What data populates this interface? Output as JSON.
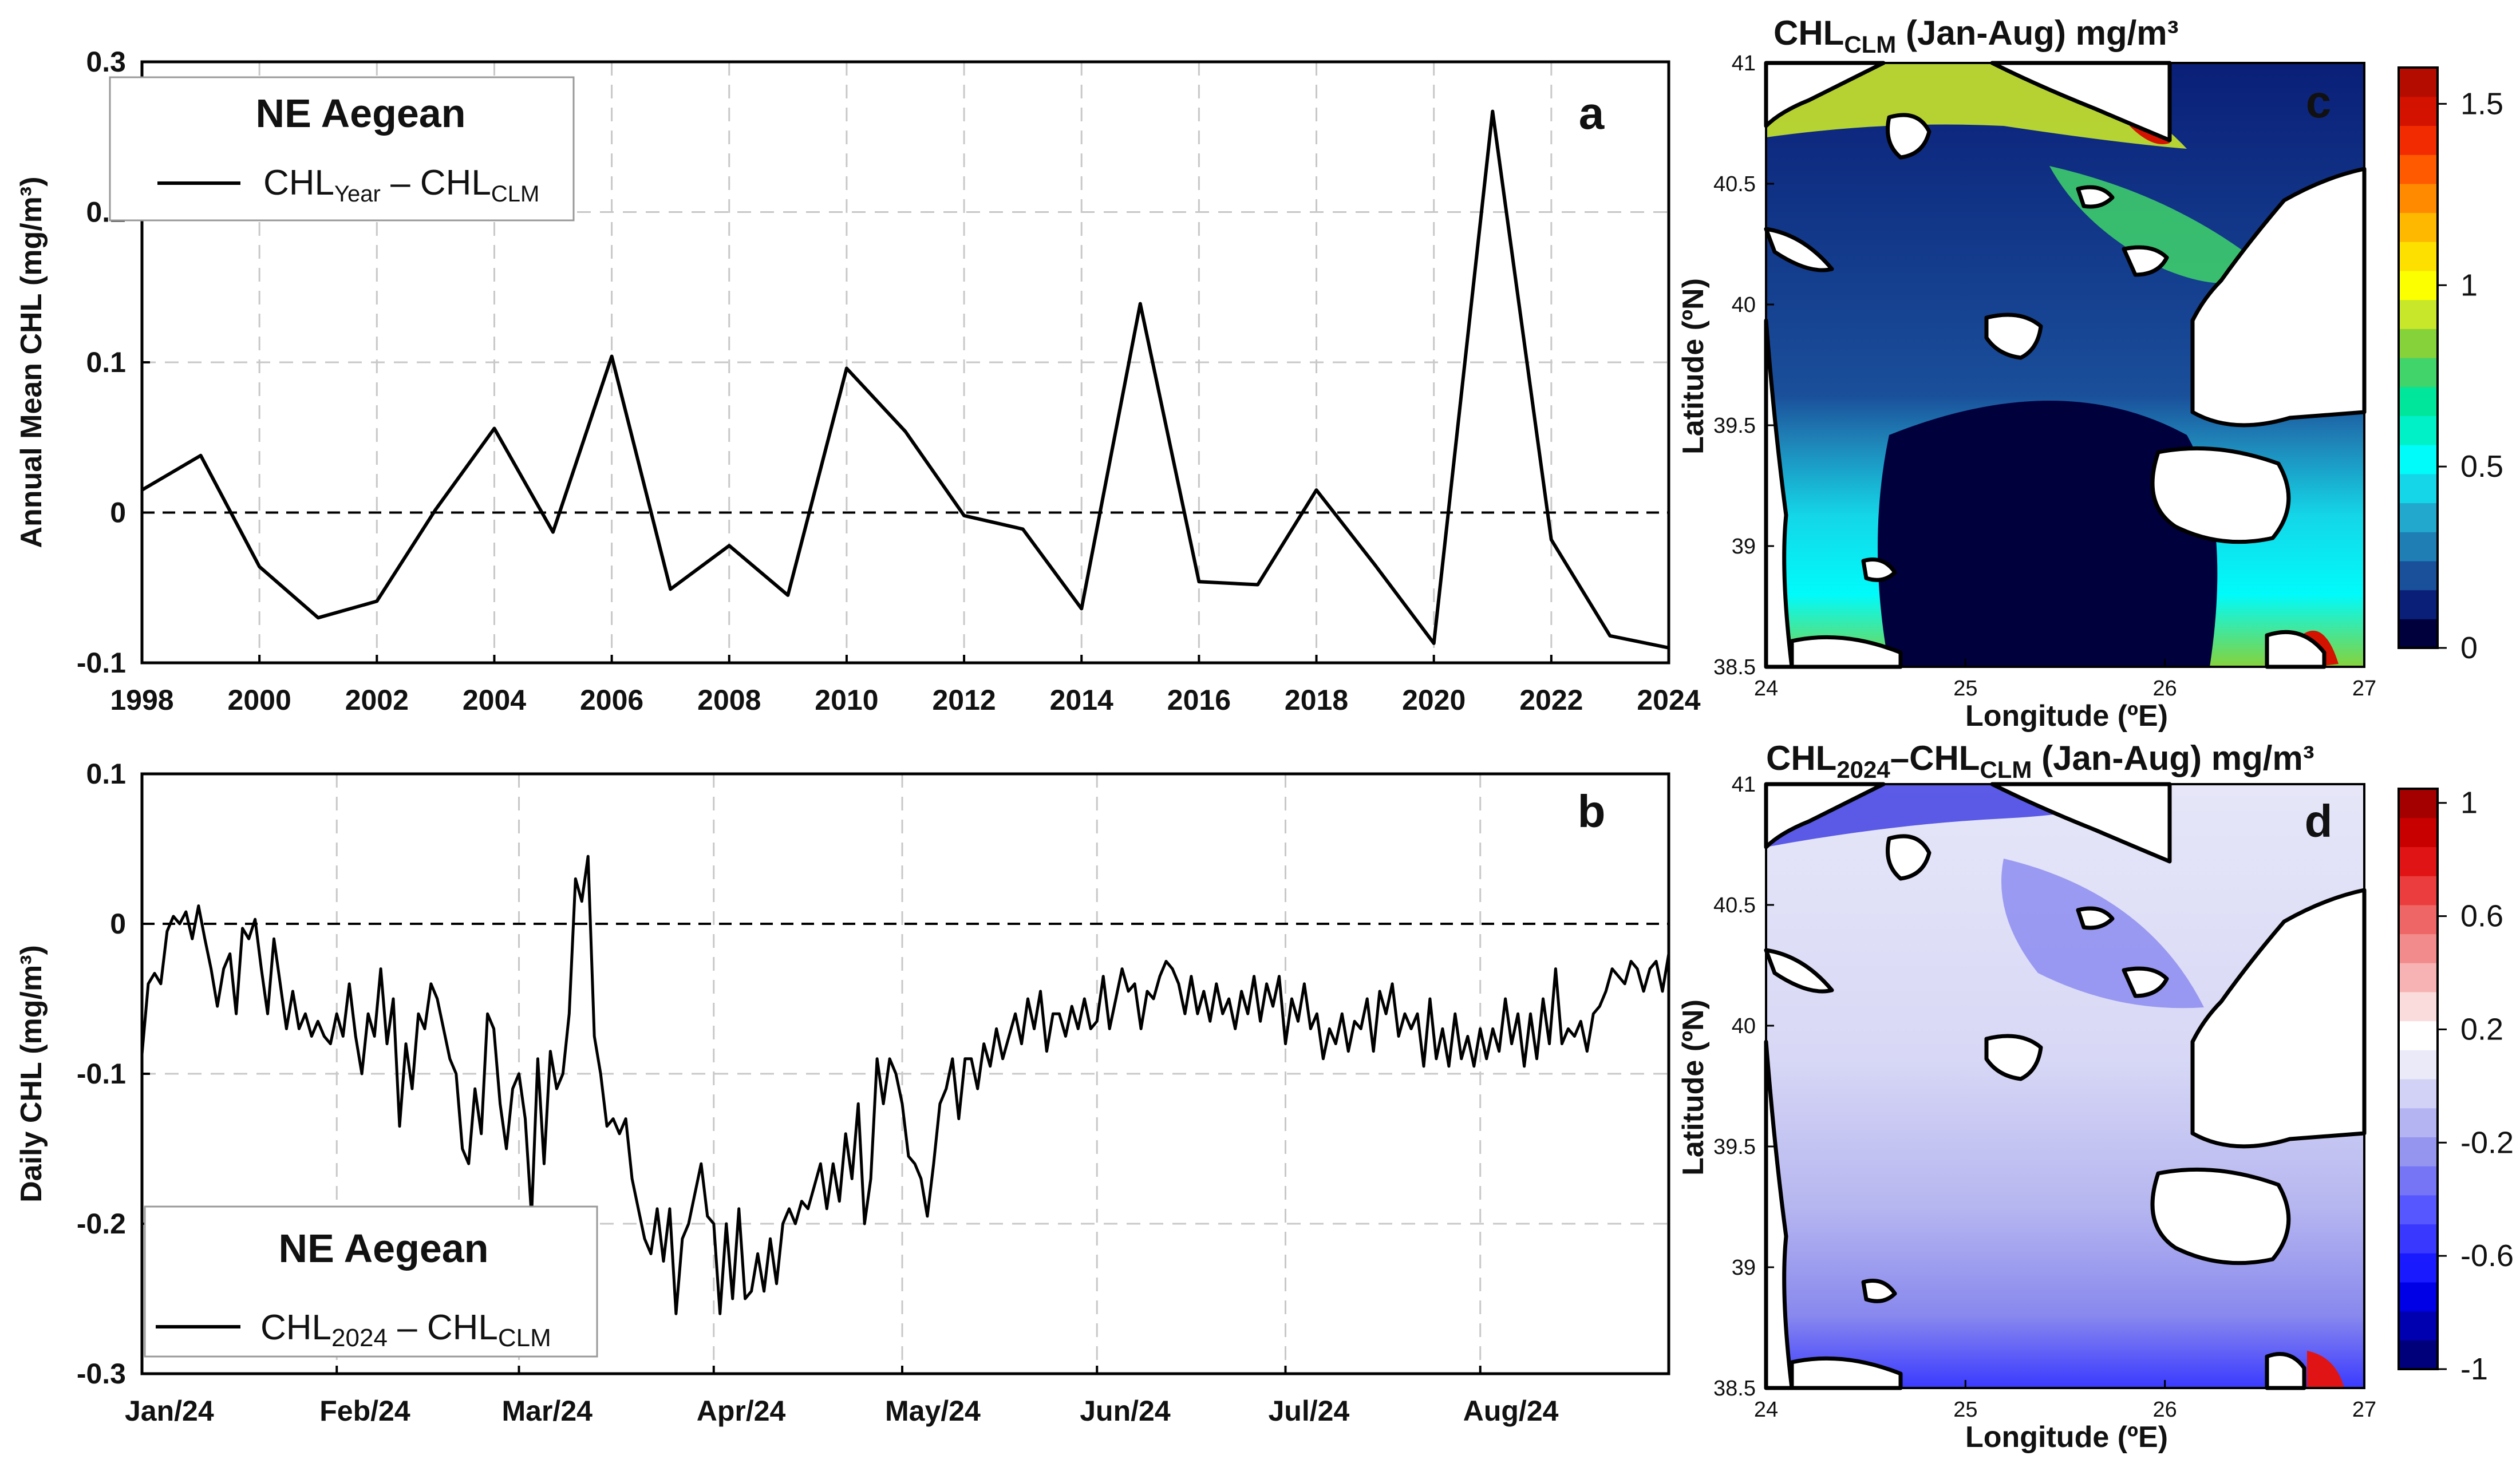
{
  "chart_data": [
    {
      "panel": "a",
      "type": "line",
      "ylabel": "Annual Mean CHL (mg/m³)",
      "legend": {
        "title": "NE Aegean",
        "entry": {
          "base": "CHL",
          "sub1": "Year",
          "mid": " – CHL",
          "sub2": "CLM"
        },
        "position": "top-left"
      },
      "xlim": [
        1998,
        2024
      ],
      "ylim": [
        -0.1,
        0.3
      ],
      "xticks": [
        1998,
        2000,
        2002,
        2004,
        2006,
        2008,
        2010,
        2012,
        2014,
        2016,
        2018,
        2020,
        2022,
        2024
      ],
      "yticks": [
        -0.1,
        0,
        0.1,
        0.2,
        0.3
      ],
      "ytick_labels": [
        "-0.1",
        "0",
        "0.1",
        "0.2",
        "0.3"
      ],
      "grid": true,
      "zero_line": "dashed",
      "x": [
        1998,
        1999,
        2000,
        2001,
        2002,
        2003,
        2004,
        2005,
        2006,
        2007,
        2008,
        2009,
        2010,
        2011,
        2012,
        2013,
        2014,
        2015,
        2016,
        2017,
        2018,
        2019,
        2020,
        2021,
        2022,
        2023,
        2024
      ],
      "y": [
        0.015,
        0.038,
        -0.036,
        -0.07,
        -0.059,
        0.002,
        0.056,
        -0.013,
        0.104,
        -0.051,
        -0.022,
        -0.055,
        0.096,
        0.054,
        -0.002,
        -0.011,
        -0.064,
        0.139,
        -0.046,
        -0.048,
        0.015,
        -0.035,
        -0.087,
        0.267,
        -0.018,
        -0.082,
        -0.09
      ]
    },
    {
      "panel": "b",
      "type": "line",
      "ylabel": "Daily CHL (mg/m³)",
      "legend": {
        "title": "NE Aegean",
        "entry": {
          "base": "CHL",
          "sub1": "2024",
          "mid": " – CHL",
          "sub2": "CLM"
        },
        "position": "bottom-left"
      },
      "xlim": [
        1,
        244
      ],
      "ylim": [
        -0.3,
        0.1
      ],
      "xticks": [
        1,
        32,
        61,
        92,
        122,
        153,
        183,
        214
      ],
      "xtick_labels": [
        "Jan/24",
        "Feb/24",
        "Mar/24",
        "Apr/24",
        "May/24",
        "Jun/24",
        "Jul/24",
        "Aug/24"
      ],
      "yticks": [
        -0.3,
        -0.2,
        -0.1,
        0,
        0.1
      ],
      "ytick_labels": [
        "-0.3",
        "-0.2",
        "-0.1",
        "0",
        "0.1"
      ],
      "grid": true,
      "zero_line": "dashed",
      "anchors": [
        [
          1,
          -0.087
        ],
        [
          2,
          -0.04
        ],
        [
          3,
          -0.033
        ],
        [
          4,
          -0.04
        ],
        [
          5,
          -0.005
        ],
        [
          6,
          0.005
        ],
        [
          7,
          0.0
        ],
        [
          8,
          0.008
        ],
        [
          9,
          -0.01
        ],
        [
          10,
          0.012
        ],
        [
          11,
          -0.01
        ],
        [
          12,
          -0.03
        ],
        [
          13,
          -0.055
        ],
        [
          14,
          -0.03
        ],
        [
          15,
          -0.02
        ],
        [
          16,
          -0.06
        ],
        [
          17,
          -0.003
        ],
        [
          18,
          -0.01
        ],
        [
          19,
          0.003
        ],
        [
          20,
          -0.03
        ],
        [
          21,
          -0.06
        ],
        [
          22,
          -0.01
        ],
        [
          23,
          -0.04
        ],
        [
          24,
          -0.07
        ],
        [
          25,
          -0.045
        ],
        [
          26,
          -0.07
        ],
        [
          27,
          -0.06
        ],
        [
          28,
          -0.075
        ],
        [
          29,
          -0.065
        ],
        [
          30,
          -0.075
        ],
        [
          31,
          -0.08
        ],
        [
          32,
          -0.06
        ],
        [
          33,
          -0.075
        ],
        [
          34,
          -0.04
        ],
        [
          35,
          -0.075
        ],
        [
          36,
          -0.1
        ],
        [
          37,
          -0.06
        ],
        [
          38,
          -0.075
        ],
        [
          39,
          -0.03
        ],
        [
          40,
          -0.08
        ],
        [
          41,
          -0.05
        ],
        [
          42,
          -0.135
        ],
        [
          43,
          -0.08
        ],
        [
          44,
          -0.11
        ],
        [
          45,
          -0.06
        ],
        [
          46,
          -0.07
        ],
        [
          47,
          -0.04
        ],
        [
          48,
          -0.05
        ],
        [
          49,
          -0.07
        ],
        [
          50,
          -0.09
        ],
        [
          51,
          -0.1
        ],
        [
          52,
          -0.15
        ],
        [
          53,
          -0.16
        ],
        [
          54,
          -0.11
        ],
        [
          55,
          -0.14
        ],
        [
          56,
          -0.06
        ],
        [
          57,
          -0.07
        ],
        [
          58,
          -0.12
        ],
        [
          59,
          -0.15
        ],
        [
          60,
          -0.11
        ],
        [
          61,
          -0.1
        ],
        [
          62,
          -0.13
        ],
        [
          63,
          -0.195
        ],
        [
          64,
          -0.09
        ],
        [
          65,
          -0.16
        ],
        [
          66,
          -0.085
        ],
        [
          67,
          -0.11
        ],
        [
          68,
          -0.1
        ],
        [
          69,
          -0.06
        ],
        [
          70,
          0.03
        ],
        [
          71,
          0.015
        ],
        [
          72,
          0.045
        ],
        [
          73,
          -0.075
        ],
        [
          74,
          -0.1
        ],
        [
          75,
          -0.135
        ],
        [
          76,
          -0.13
        ],
        [
          77,
          -0.14
        ],
        [
          78,
          -0.13
        ],
        [
          79,
          -0.17
        ],
        [
          80,
          -0.19
        ],
        [
          81,
          -0.21
        ],
        [
          82,
          -0.22
        ],
        [
          83,
          -0.19
        ],
        [
          84,
          -0.225
        ],
        [
          85,
          -0.19
        ],
        [
          86,
          -0.26
        ],
        [
          87,
          -0.21
        ],
        [
          88,
          -0.2
        ],
        [
          89,
          -0.18
        ],
        [
          90,
          -0.16
        ],
        [
          91,
          -0.195
        ],
        [
          92,
          -0.2
        ],
        [
          93,
          -0.26
        ],
        [
          94,
          -0.2
        ],
        [
          95,
          -0.25
        ],
        [
          96,
          -0.19
        ],
        [
          97,
          -0.25
        ],
        [
          98,
          -0.245
        ],
        [
          99,
          -0.22
        ],
        [
          100,
          -0.245
        ],
        [
          101,
          -0.21
        ],
        [
          102,
          -0.24
        ],
        [
          103,
          -0.2
        ],
        [
          104,
          -0.19
        ],
        [
          105,
          -0.2
        ],
        [
          106,
          -0.185
        ],
        [
          107,
          -0.19
        ],
        [
          108,
          -0.175
        ],
        [
          109,
          -0.16
        ],
        [
          110,
          -0.19
        ],
        [
          111,
          -0.16
        ],
        [
          112,
          -0.185
        ],
        [
          113,
          -0.14
        ],
        [
          114,
          -0.17
        ],
        [
          115,
          -0.12
        ],
        [
          116,
          -0.2
        ],
        [
          117,
          -0.17
        ],
        [
          118,
          -0.09
        ],
        [
          119,
          -0.12
        ],
        [
          120,
          -0.09
        ],
        [
          121,
          -0.1
        ],
        [
          122,
          -0.12
        ],
        [
          123,
          -0.155
        ],
        [
          124,
          -0.16
        ],
        [
          125,
          -0.17
        ],
        [
          126,
          -0.195
        ],
        [
          127,
          -0.16
        ],
        [
          128,
          -0.12
        ],
        [
          129,
          -0.11
        ],
        [
          130,
          -0.09
        ],
        [
          131,
          -0.13
        ],
        [
          132,
          -0.09
        ],
        [
          133,
          -0.09
        ],
        [
          134,
          -0.11
        ],
        [
          135,
          -0.08
        ],
        [
          136,
          -0.095
        ],
        [
          137,
          -0.07
        ],
        [
          138,
          -0.09
        ],
        [
          139,
          -0.075
        ],
        [
          140,
          -0.06
        ],
        [
          141,
          -0.08
        ],
        [
          142,
          -0.05
        ],
        [
          143,
          -0.07
        ],
        [
          144,
          -0.045
        ],
        [
          145,
          -0.085
        ],
        [
          146,
          -0.06
        ],
        [
          147,
          -0.06
        ],
        [
          148,
          -0.075
        ],
        [
          149,
          -0.055
        ],
        [
          150,
          -0.07
        ],
        [
          151,
          -0.05
        ],
        [
          152,
          -0.07
        ],
        [
          153,
          -0.065
        ],
        [
          154,
          -0.035
        ],
        [
          155,
          -0.07
        ],
        [
          156,
          -0.05
        ],
        [
          157,
          -0.03
        ],
        [
          158,
          -0.045
        ],
        [
          159,
          -0.04
        ],
        [
          160,
          -0.07
        ],
        [
          161,
          -0.045
        ],
        [
          162,
          -0.05
        ],
        [
          163,
          -0.035
        ],
        [
          164,
          -0.025
        ],
        [
          165,
          -0.03
        ],
        [
          166,
          -0.04
        ],
        [
          167,
          -0.06
        ],
        [
          168,
          -0.035
        ],
        [
          169,
          -0.06
        ],
        [
          170,
          -0.045
        ],
        [
          171,
          -0.065
        ],
        [
          172,
          -0.04
        ],
        [
          173,
          -0.06
        ],
        [
          174,
          -0.05
        ],
        [
          175,
          -0.07
        ],
        [
          176,
          -0.045
        ],
        [
          177,
          -0.06
        ],
        [
          178,
          -0.035
        ],
        [
          179,
          -0.065
        ],
        [
          180,
          -0.04
        ],
        [
          181,
          -0.055
        ],
        [
          182,
          -0.035
        ],
        [
          183,
          -0.08
        ],
        [
          184,
          -0.05
        ],
        [
          185,
          -0.065
        ],
        [
          186,
          -0.04
        ],
        [
          187,
          -0.07
        ],
        [
          188,
          -0.06
        ],
        [
          189,
          -0.09
        ],
        [
          190,
          -0.07
        ],
        [
          191,
          -0.08
        ],
        [
          192,
          -0.06
        ],
        [
          193,
          -0.085
        ],
        [
          194,
          -0.065
        ],
        [
          195,
          -0.07
        ],
        [
          196,
          -0.05
        ],
        [
          197,
          -0.085
        ],
        [
          198,
          -0.045
        ],
        [
          199,
          -0.06
        ],
        [
          200,
          -0.04
        ],
        [
          201,
          -0.075
        ],
        [
          202,
          -0.06
        ],
        [
          203,
          -0.07
        ],
        [
          204,
          -0.06
        ],
        [
          205,
          -0.095
        ],
        [
          206,
          -0.05
        ],
        [
          207,
          -0.09
        ],
        [
          208,
          -0.07
        ],
        [
          209,
          -0.095
        ],
        [
          210,
          -0.06
        ],
        [
          211,
          -0.09
        ],
        [
          212,
          -0.075
        ],
        [
          213,
          -0.095
        ],
        [
          214,
          -0.07
        ],
        [
          215,
          -0.09
        ],
        [
          216,
          -0.07
        ],
        [
          217,
          -0.085
        ],
        [
          218,
          -0.05
        ],
        [
          219,
          -0.08
        ],
        [
          220,
          -0.06
        ],
        [
          221,
          -0.095
        ],
        [
          222,
          -0.06
        ],
        [
          223,
          -0.09
        ],
        [
          224,
          -0.05
        ],
        [
          225,
          -0.08
        ],
        [
          226,
          -0.03
        ],
        [
          227,
          -0.08
        ],
        [
          228,
          -0.07
        ],
        [
          229,
          -0.075
        ],
        [
          230,
          -0.065
        ],
        [
          231,
          -0.085
        ],
        [
          232,
          -0.06
        ],
        [
          233,
          -0.055
        ],
        [
          234,
          -0.045
        ],
        [
          235,
          -0.03
        ],
        [
          236,
          -0.035
        ],
        [
          237,
          -0.04
        ],
        [
          238,
          -0.025
        ],
        [
          239,
          -0.03
        ],
        [
          240,
          -0.045
        ],
        [
          241,
          -0.03
        ],
        [
          242,
          -0.025
        ],
        [
          243,
          -0.045
        ],
        [
          244,
          -0.02
        ]
      ]
    },
    {
      "panel": "c",
      "type": "heatmap",
      "title": {
        "base": "CHL",
        "sub": "CLM",
        "rest": " (Jan-Aug) mg/m³"
      },
      "xlabel": "Longitude (ºE)",
      "ylabel": "Latitude (ºN)",
      "xticks": [
        "24",
        "25",
        "26",
        "27"
      ],
      "yticks": [
        "38.5",
        "39",
        "39.5",
        "40",
        "40.5",
        "41"
      ],
      "colorbar": {
        "range": [
          0,
          1.6
        ],
        "ticks": [
          "0",
          "0.5",
          "1",
          "1.5"
        ],
        "colors": [
          "#00003c",
          "#0a1f78",
          "#1a4f9a",
          "#1f7fb5",
          "#22a8cc",
          "#14d6e8",
          "#00fbfb",
          "#00f0c8",
          "#00e69b",
          "#40d46a",
          "#86d23a",
          "#c8e62a",
          "#fbff00",
          "#fde000",
          "#ffb800",
          "#ff8a00",
          "#ff5a00",
          "#f32b00",
          "#d41200",
          "#b40d00"
        ]
      }
    },
    {
      "panel": "d",
      "type": "heatmap",
      "title": {
        "base": "CHL",
        "sub": "2024",
        "mid": "–CHL",
        "sub2": "CLM",
        "rest": " (Jan-Aug) mg/m³"
      },
      "xlabel": "Longitude (ºE)",
      "ylabel": "Latitude (ºN)",
      "xticks": [
        "24",
        "25",
        "26",
        "27"
      ],
      "yticks": [
        "38.5",
        "39",
        "39.5",
        "40",
        "40.5",
        "41"
      ],
      "colorbar": {
        "range": [
          -1,
          1.05
        ],
        "ticks": [
          "-1",
          "-0.6",
          "-0.2",
          "0.2",
          "0.6",
          "1"
        ],
        "colors": [
          "#00007a",
          "#0000b0",
          "#0000e6",
          "#1a1aff",
          "#3838ff",
          "#5757ff",
          "#7575f5",
          "#9595f0",
          "#b4b4f2",
          "#d2d2f7",
          "#eaeaf8",
          "#ffffff",
          "#fbdcdc",
          "#f7b3b3",
          "#f28c8c",
          "#ee6666",
          "#eb3d3d",
          "#e01414",
          "#c80000",
          "#a40000"
        ]
      }
    }
  ]
}
